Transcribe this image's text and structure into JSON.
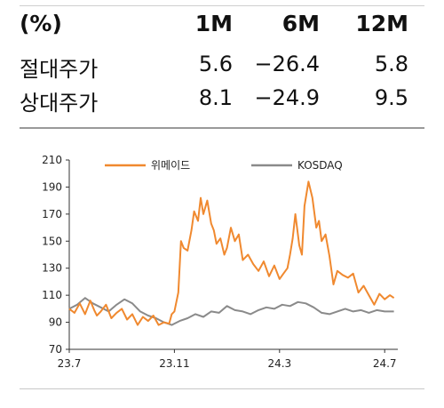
{
  "table": {
    "headers": [
      "(%)",
      "1M",
      "6M",
      "12M"
    ],
    "rows": [
      {
        "label": "절대주가",
        "m1": "5.6",
        "m6": "−26.4",
        "m12": "5.8"
      },
      {
        "label": "상대주가",
        "m1": "8.1",
        "m6": "−24.9",
        "m12": "9.5"
      }
    ]
  },
  "colors": {
    "series1": "#f0892f",
    "series2": "#8a8a8a",
    "axis": "#333333"
  },
  "chart_data": {
    "type": "line",
    "xlabel": "",
    "ylabel": "",
    "ylim": [
      70,
      210
    ],
    "yticks": [
      "70",
      "90",
      "110",
      "130",
      "150",
      "170",
      "190",
      "210"
    ],
    "xticks": [
      "23.7",
      "23.11",
      "24.3",
      "24.7"
    ],
    "xlim": [
      0,
      12.5
    ],
    "legend_position": "top-center",
    "grid": false,
    "series": [
      {
        "name": "위메이드",
        "color": "#f0892f",
        "x": [
          0,
          0.2,
          0.4,
          0.6,
          0.8,
          0.95,
          1.05,
          1.2,
          1.4,
          1.6,
          1.8,
          2.0,
          2.2,
          2.4,
          2.6,
          2.8,
          3.0,
          3.2,
          3.4,
          3.6,
          3.8,
          3.9,
          4.0,
          4.15,
          4.25,
          4.35,
          4.5,
          4.65,
          4.75,
          4.9,
          5.0,
          5.1,
          5.25,
          5.4,
          5.5,
          5.6,
          5.75,
          5.9,
          6.0,
          6.15,
          6.3,
          6.45,
          6.6,
          6.8,
          7.0,
          7.2,
          7.4,
          7.6,
          7.8,
          8.0,
          8.15,
          8.3,
          8.4,
          8.5,
          8.6,
          8.75,
          8.85,
          8.95,
          9.1,
          9.25,
          9.4,
          9.5,
          9.6,
          9.75,
          9.9,
          10.05,
          10.2,
          10.4,
          10.6,
          10.8,
          11.0,
          11.2,
          11.4,
          11.6,
          11.8,
          12.0,
          12.2,
          12.35
        ],
        "values": [
          100,
          97,
          104,
          96,
          106,
          99,
          95,
          98,
          103,
          93,
          97,
          100,
          92,
          96,
          88,
          94,
          91,
          95,
          88,
          90,
          89,
          96,
          98,
          112,
          150,
          145,
          143,
          158,
          172,
          165,
          182,
          170,
          180,
          163,
          158,
          148,
          152,
          140,
          145,
          160,
          150,
          155,
          136,
          140,
          133,
          128,
          135,
          124,
          132,
          122,
          126,
          130,
          140,
          152,
          170,
          147,
          140,
          176,
          194,
          182,
          160,
          165,
          150,
          155,
          139,
          118,
          128,
          125,
          123,
          126,
          112,
          117,
          110,
          103,
          111,
          107,
          110,
          108
        ]
      },
      {
        "name": "KOSDAQ",
        "color": "#8a8a8a",
        "x": [
          0,
          0.3,
          0.6,
          0.9,
          1.2,
          1.5,
          1.8,
          2.1,
          2.4,
          2.7,
          3.0,
          3.3,
          3.6,
          3.9,
          4.2,
          4.5,
          4.8,
          5.1,
          5.4,
          5.7,
          6.0,
          6.3,
          6.6,
          6.9,
          7.2,
          7.5,
          7.8,
          8.1,
          8.4,
          8.7,
          9.0,
          9.3,
          9.6,
          9.9,
          10.2,
          10.5,
          10.8,
          11.1,
          11.4,
          11.7,
          12.0,
          12.35
        ],
        "values": [
          100,
          103,
          108,
          104,
          101,
          98,
          103,
          107,
          104,
          98,
          95,
          93,
          90,
          88,
          91,
          93,
          96,
          94,
          98,
          97,
          102,
          99,
          98,
          96,
          99,
          101,
          100,
          103,
          102,
          105,
          104,
          101,
          97,
          96,
          98,
          100,
          98,
          99,
          97,
          99,
          98,
          98
        ]
      }
    ]
  }
}
